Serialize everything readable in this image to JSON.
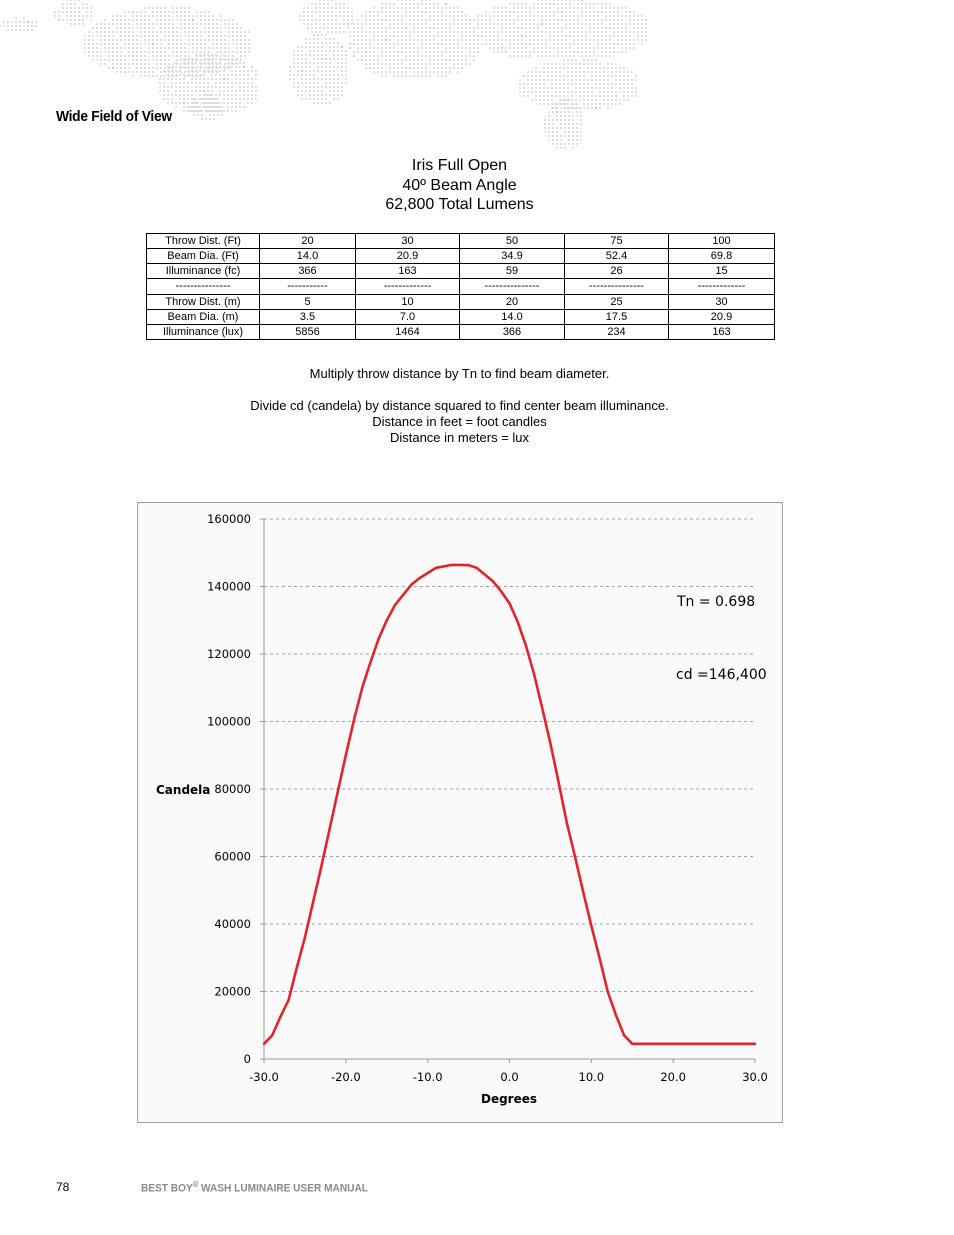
{
  "section_title": "Wide Field of View",
  "heading": {
    "line1": "Iris Full Open",
    "line2": "40º Beam Angle",
    "line3": "62,800 Total Lumens"
  },
  "table": {
    "rows": [
      [
        "Throw Dist. (Ft)",
        "20",
        "30",
        "50",
        "75",
        "100"
      ],
      [
        "Beam Dia. (Ft)",
        "14.0",
        "20.9",
        "34.9",
        "52.4",
        "69.8"
      ],
      [
        "Illuminance (fc)",
        "366",
        "163",
        "59",
        "26",
        "15"
      ],
      [
        "---------------",
        "-----------",
        "-------------",
        "---------------",
        "---------------",
        "-------------"
      ],
      [
        "Throw Dist. (m)",
        "5",
        "10",
        "20",
        "25",
        "30"
      ],
      [
        "Beam Dia. (m)",
        "3.5",
        "7.0",
        "14.0",
        "17.5",
        "20.9"
      ],
      [
        "Illuminance (lux)",
        "5856",
        "1464",
        "366",
        "234",
        "163"
      ]
    ]
  },
  "notes": {
    "multiply": "Multiply throw distance by Tn to find beam diameter.",
    "divide": "Divide cd (candela) by distance squared to find center beam illuminance.",
    "feet": "Distance in feet = foot candles",
    "meters": "Distance in meters = lux"
  },
  "chart_data": {
    "type": "line",
    "title": "",
    "xlabel": "Degrees",
    "ylabel": "Candela",
    "xlim": [
      -30,
      30
    ],
    "ylim": [
      0,
      160000
    ],
    "x_ticks": [
      "-30.0",
      "-20.0",
      "-10.0",
      "0.0",
      "10.0",
      "20.0",
      "30.0"
    ],
    "y_ticks": [
      "0",
      "20000",
      "40000",
      "60000",
      "80000",
      "100000",
      "120000",
      "140000",
      "160000"
    ],
    "grid": "horizontal dashed",
    "line_color": "#e3242b",
    "annotations": [
      "Tn = 0.698",
      "cd =146,400"
    ],
    "series": [
      {
        "x": [
          -30,
          -29,
          -28,
          -27,
          -26,
          -25,
          -24,
          -23,
          -22,
          -21,
          -20,
          -19,
          -18,
          -17,
          -16,
          -15,
          -14,
          -13,
          -12,
          -11,
          -10,
          -9,
          -8,
          -7,
          -6,
          -5,
          -4,
          -3,
          -2,
          -1,
          0,
          1,
          2,
          3,
          4,
          5,
          6,
          7,
          8,
          9,
          10,
          11,
          12,
          13,
          14,
          15,
          16,
          17,
          18,
          19,
          20,
          21,
          22,
          23,
          24,
          25,
          26,
          27,
          28,
          29,
          30
        ],
        "values": [
          4500,
          7000,
          12500,
          17500,
          27000,
          36000,
          46500,
          57000,
          68000,
          79000,
          90000,
          100500,
          110000,
          117500,
          124500,
          130000,
          134500,
          137500,
          140500,
          142500,
          144000,
          145500,
          146000,
          146400,
          146400,
          146300,
          145500,
          143500,
          141500,
          138500,
          135000,
          129500,
          122500,
          114000,
          104000,
          93500,
          82000,
          70000,
          60000,
          49500,
          39500,
          30000,
          20000,
          13000,
          7000,
          4500,
          4500,
          4500,
          4500,
          4500,
          4500,
          4500,
          4500,
          4500,
          4500,
          4500,
          4500,
          4500,
          4500,
          4500,
          4500
        ]
      }
    ]
  },
  "footer": {
    "page_number": "78",
    "brand": "BEST BOY",
    "reg": "®",
    "manual": " WASH LUMINAIRE USER MANUAL"
  }
}
